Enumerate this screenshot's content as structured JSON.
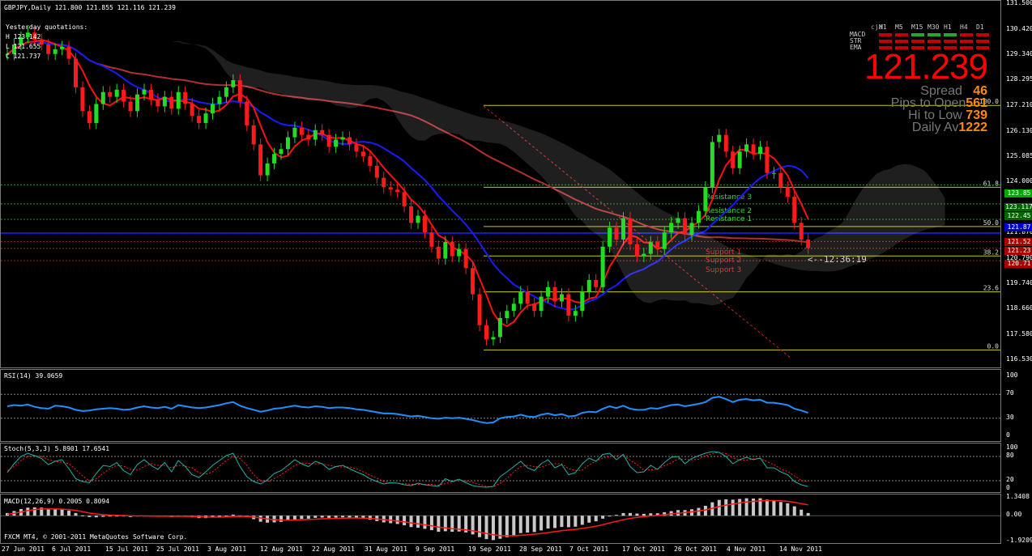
{
  "header": {
    "symbol_line": "GBPJPY,Daily  121.800 121.855 121.116 121.239",
    "yesterday_title": "Yesterday quotations:",
    "yesterday_h": "H 123.142",
    "yesterday_l": "L 121.655",
    "yesterday_c": "C 121.737"
  },
  "panel": {
    "cja": "cja",
    "timeframes": [
      "M1",
      "M5",
      "M15",
      "M30",
      "H1",
      "H4",
      "D1"
    ],
    "rows": [
      "MACD",
      "STR",
      "EMA"
    ],
    "macd_colors": [
      "#c00000",
      "#c00000",
      "#22aa22",
      "#22aa22",
      "#22aa22",
      "#c00000",
      "#c00000"
    ],
    "str_colors": [
      "#c00000",
      "#c00000",
      "#c00000",
      "#c00000",
      "#c00000",
      "#c00000",
      "#c00000"
    ],
    "ema_colors": [
      "#c00000",
      "#c00000",
      "#c00000",
      "#c00000",
      "#c00000",
      "#c00000",
      "#c00000"
    ],
    "price": "121.239",
    "spread_label": "Spread",
    "spread_value": "46",
    "pips_label": "Pips to Open",
    "pips_value": "561",
    "hilo_label": "Hi to Low",
    "hilo_value": "739",
    "daily_label": "Daily Av",
    "daily_value": "1222"
  },
  "chart_data": [
    {
      "type": "candlestick",
      "title": "GBPJPY,Daily",
      "y_ticks": [
        "131.500",
        "130.420",
        "129.340",
        "128.295",
        "127.210",
        "126.130",
        "125.085",
        "124.000",
        "122.920",
        "121.870",
        "120.790",
        "119.740",
        "118.660",
        "117.580",
        "116.530"
      ],
      "ylim": [
        116.53,
        131.5
      ],
      "fib_levels": [
        {
          "label": "100.0",
          "price": 127.24
        },
        {
          "label": "61.8",
          "price": 123.8
        },
        {
          "label": "50.0",
          "price": 122.15
        },
        {
          "label": "38.2",
          "price": 120.91
        },
        {
          "label": "23.6",
          "price": 119.4
        },
        {
          "label": "0.0",
          "price": 116.96
        }
      ],
      "level_tags": [
        "Resistance 3",
        "Resistance 2",
        "Resistance 1",
        "Support 1",
        "Support 2",
        "Support 3"
      ],
      "countdown": "<--12:36:19",
      "price_tags": [
        {
          "text": "123.85",
          "color": "#00aa00"
        },
        {
          "text": "123.117",
          "color": "#006600"
        },
        {
          "text": "122.45",
          "color": "#006600"
        },
        {
          "text": "121.87",
          "color": "#0000cc"
        },
        {
          "text": "121.52",
          "color": "#aa0000"
        },
        {
          "text": "121.23",
          "color": "#aa0000"
        },
        {
          "text": "120.71",
          "color": "#aa0000"
        }
      ],
      "closes": [
        129.4,
        129.8,
        130.1,
        130.3,
        130.0,
        129.8,
        129.4,
        129.6,
        129.7,
        129.2,
        128.0,
        127.0,
        126.5,
        127.3,
        127.8,
        127.6,
        127.9,
        127.4,
        127.0,
        127.7,
        127.9,
        127.5,
        127.2,
        127.6,
        127.1,
        127.8,
        127.3,
        126.8,
        126.5,
        126.9,
        127.3,
        127.6,
        128.0,
        128.3,
        127.4,
        126.4,
        125.6,
        124.3,
        124.8,
        125.2,
        125.4,
        125.9,
        126.3,
        126.0,
        125.8,
        126.2,
        126.0,
        125.5,
        125.8,
        125.9,
        125.6,
        125.3,
        125.1,
        124.7,
        124.2,
        123.8,
        123.7,
        123.6,
        123.0,
        122.3,
        122.6,
        121.9,
        121.3,
        120.8,
        121.5,
        120.9,
        121.2,
        120.4,
        119.3,
        118.0,
        117.4,
        117.5,
        118.3,
        118.6,
        118.9,
        119.4,
        118.9,
        118.6,
        119.2,
        119.6,
        119.0,
        119.3,
        118.4,
        118.6,
        119.4,
        119.9,
        119.6,
        121.3,
        122.1,
        121.6,
        122.5,
        121.4,
        120.9,
        121.0,
        121.5,
        121.2,
        121.9,
        122.3,
        122.5,
        121.8,
        122.3,
        122.8,
        123.8,
        125.7,
        126.0,
        125.3,
        124.6,
        125.3,
        125.6,
        125.2,
        125.5,
        124.4,
        124.4,
        123.8,
        123.4,
        122.3,
        121.6,
        121.24
      ],
      "x_labels": [
        "27 Jun 2011",
        "6 Jul 2011",
        "15 Jul 2011",
        "25 Jul 2011",
        "3 Aug 2011",
        "12 Aug 2011",
        "22 Aug 2011",
        "31 Aug 2011",
        "9 Sep 2011",
        "19 Sep 2011",
        "28 Sep 2011",
        "7 Oct 2011",
        "17 Oct 2011",
        "26 Oct 2011",
        "4 Nov 2011",
        "14 Nov 2011"
      ]
    },
    {
      "type": "line",
      "title": "RSI(14) 39.0659",
      "y_ticks": [
        "100",
        "70",
        "30",
        "0"
      ],
      "ylim": [
        0,
        100
      ],
      "values": [
        50,
        52,
        51,
        53,
        49,
        47,
        46,
        51,
        50,
        48,
        44,
        42,
        43,
        45,
        46,
        47,
        46,
        44,
        45,
        48,
        50,
        48,
        47,
        49,
        46,
        52,
        50,
        48,
        47,
        48,
        50,
        52,
        55,
        57,
        51,
        47,
        44,
        41,
        43,
        46,
        47,
        49,
        51,
        49,
        48,
        50,
        49,
        47,
        48,
        48,
        47,
        45,
        44,
        42,
        40,
        38,
        38,
        37,
        35,
        33,
        34,
        32,
        30,
        29,
        31,
        30,
        31,
        29,
        27,
        24,
        22,
        23,
        30,
        32,
        33,
        36,
        33,
        32,
        36,
        38,
        35,
        37,
        33,
        34,
        39,
        41,
        40,
        46,
        50,
        47,
        51,
        46,
        44,
        44,
        47,
        46,
        49,
        52,
        53,
        50,
        52,
        54,
        57,
        64,
        66,
        62,
        57,
        61,
        62,
        60,
        61,
        56,
        56,
        54,
        52,
        46,
        43,
        39
      ]
    },
    {
      "type": "line",
      "title": "Stoch(5,3,3) 5.8901 17.6541",
      "y_ticks": [
        "100",
        "80",
        "20",
        "0"
      ],
      "ylim": [
        0,
        100
      ],
      "series": [
        {
          "name": "main",
          "values": [
            40,
            62,
            80,
            88,
            82,
            75,
            60,
            68,
            72,
            50,
            25,
            18,
            15,
            38,
            58,
            55,
            65,
            45,
            35,
            60,
            72,
            58,
            48,
            65,
            42,
            70,
            55,
            35,
            28,
            42,
            58,
            70,
            82,
            88,
            55,
            30,
            18,
            12,
            22,
            38,
            45,
            58,
            72,
            62,
            55,
            68,
            62,
            48,
            55,
            58,
            50,
            42,
            35,
            25,
            18,
            12,
            15,
            14,
            10,
            8,
            14,
            10,
            8,
            6,
            25,
            18,
            24,
            15,
            8,
            5,
            4,
            6,
            30,
            42,
            55,
            68,
            52,
            45,
            62,
            72,
            52,
            60,
            35,
            40,
            62,
            76,
            68,
            85,
            88,
            72,
            85,
            55,
            40,
            42,
            58,
            48,
            65,
            78,
            80,
            62,
            75,
            82,
            88,
            92,
            90,
            80,
            62,
            72,
            78,
            72,
            76,
            52,
            52,
            42,
            35,
            18,
            10,
            5.89
          ]
        },
        {
          "name": "signal",
          "values": [
            45,
            55,
            70,
            80,
            82,
            80,
            72,
            68,
            66,
            62,
            48,
            32,
            20,
            25,
            38,
            50,
            58,
            56,
            48,
            46,
            55,
            62,
            58,
            58,
            52,
            58,
            56,
            52,
            40,
            36,
            42,
            56,
            70,
            80,
            75,
            58,
            35,
            20,
            18,
            25,
            35,
            46,
            58,
            64,
            63,
            62,
            62,
            58,
            55,
            54,
            54,
            50,
            42,
            34,
            26,
            18,
            14,
            14,
            13,
            11,
            11,
            11,
            11,
            9,
            13,
            17,
            22,
            19,
            16,
            10,
            6,
            5,
            14,
            26,
            42,
            55,
            58,
            55,
            53,
            60,
            62,
            62,
            50,
            45,
            46,
            59,
            69,
            76,
            80,
            82,
            82,
            71,
            60,
            46,
            47,
            49,
            57,
            64,
            74,
            73,
            72,
            73,
            82,
            87,
            90,
            87,
            77,
            71,
            71,
            74,
            75,
            67,
            60,
            49,
            43,
            32,
            21,
            17.65
          ]
        }
      ]
    },
    {
      "type": "bar",
      "title": "MACD(12,26,9) 0.2005 0.8094",
      "y_ticks": [
        "1.3408",
        "0.00",
        "-1.9209"
      ],
      "ylim": [
        -1.9209,
        1.3408
      ],
      "series": [
        {
          "name": "histogram",
          "values": [
            0.2,
            0.35,
            0.5,
            0.6,
            0.62,
            0.6,
            0.52,
            0.48,
            0.46,
            0.38,
            0.2,
            0.02,
            -0.1,
            -0.12,
            -0.08,
            -0.05,
            -0.02,
            -0.06,
            -0.1,
            -0.06,
            -0.02,
            -0.04,
            -0.08,
            -0.06,
            -0.1,
            -0.04,
            -0.06,
            -0.12,
            -0.18,
            -0.18,
            -0.14,
            -0.08,
            0.0,
            0.08,
            0.02,
            -0.1,
            -0.26,
            -0.45,
            -0.52,
            -0.5,
            -0.46,
            -0.38,
            -0.28,
            -0.24,
            -0.22,
            -0.16,
            -0.14,
            -0.16,
            -0.14,
            -0.12,
            -0.14,
            -0.18,
            -0.22,
            -0.3,
            -0.4,
            -0.5,
            -0.56,
            -0.62,
            -0.72,
            -0.85,
            -0.9,
            -0.98,
            -1.08,
            -1.2,
            -1.16,
            -1.2,
            -1.18,
            -1.25,
            -1.4,
            -1.6,
            -1.75,
            -1.82,
            -1.72,
            -1.6,
            -1.46,
            -1.3,
            -1.26,
            -1.22,
            -1.1,
            -0.96,
            -0.92,
            -0.84,
            -0.86,
            -0.82,
            -0.68,
            -0.52,
            -0.42,
            -0.22,
            -0.02,
            0.06,
            0.2,
            0.2,
            0.16,
            0.14,
            0.18,
            0.18,
            0.26,
            0.34,
            0.42,
            0.42,
            0.48,
            0.58,
            0.74,
            1.0,
            1.18,
            1.22,
            1.2,
            1.25,
            1.3,
            1.28,
            1.3,
            1.2,
            1.12,
            1.02,
            0.92,
            0.7,
            0.45,
            0.2005
          ]
        },
        {
          "name": "signal",
          "values": [
            0.1,
            0.18,
            0.28,
            0.38,
            0.46,
            0.5,
            0.5,
            0.5,
            0.49,
            0.46,
            0.4,
            0.3,
            0.2,
            0.13,
            0.08,
            0.05,
            0.03,
            0.01,
            -0.01,
            -0.02,
            -0.02,
            -0.03,
            -0.04,
            -0.04,
            -0.05,
            -0.05,
            -0.05,
            -0.06,
            -0.08,
            -0.1,
            -0.11,
            -0.11,
            -0.09,
            -0.06,
            -0.05,
            -0.06,
            -0.1,
            -0.17,
            -0.24,
            -0.29,
            -0.32,
            -0.33,
            -0.32,
            -0.3,
            -0.28,
            -0.26,
            -0.23,
            -0.22,
            -0.2,
            -0.18,
            -0.17,
            -0.17,
            -0.18,
            -0.2,
            -0.24,
            -0.29,
            -0.34,
            -0.4,
            -0.46,
            -0.54,
            -0.61,
            -0.68,
            -0.76,
            -0.85,
            -0.91,
            -0.97,
            -1.01,
            -1.06,
            -1.13,
            -1.22,
            -1.33,
            -1.42,
            -1.48,
            -1.5,
            -1.5,
            -1.46,
            -1.43,
            -1.38,
            -1.33,
            -1.26,
            -1.19,
            -1.12,
            -1.07,
            -1.02,
            -0.95,
            -0.87,
            -0.78,
            -0.67,
            -0.54,
            -0.42,
            -0.3,
            -0.2,
            -0.13,
            -0.07,
            -0.02,
            0.02,
            0.07,
            0.13,
            0.19,
            0.24,
            0.29,
            0.35,
            0.43,
            0.55,
            0.68,
            0.79,
            0.87,
            0.95,
            1.02,
            1.07,
            1.11,
            1.13,
            1.13,
            1.11,
            1.07,
            1.0,
            0.9,
            0.8094
          ]
        }
      ]
    }
  ],
  "footer": "FXCM MT4, © 2001-2011 MetaQuotes Software Corp."
}
